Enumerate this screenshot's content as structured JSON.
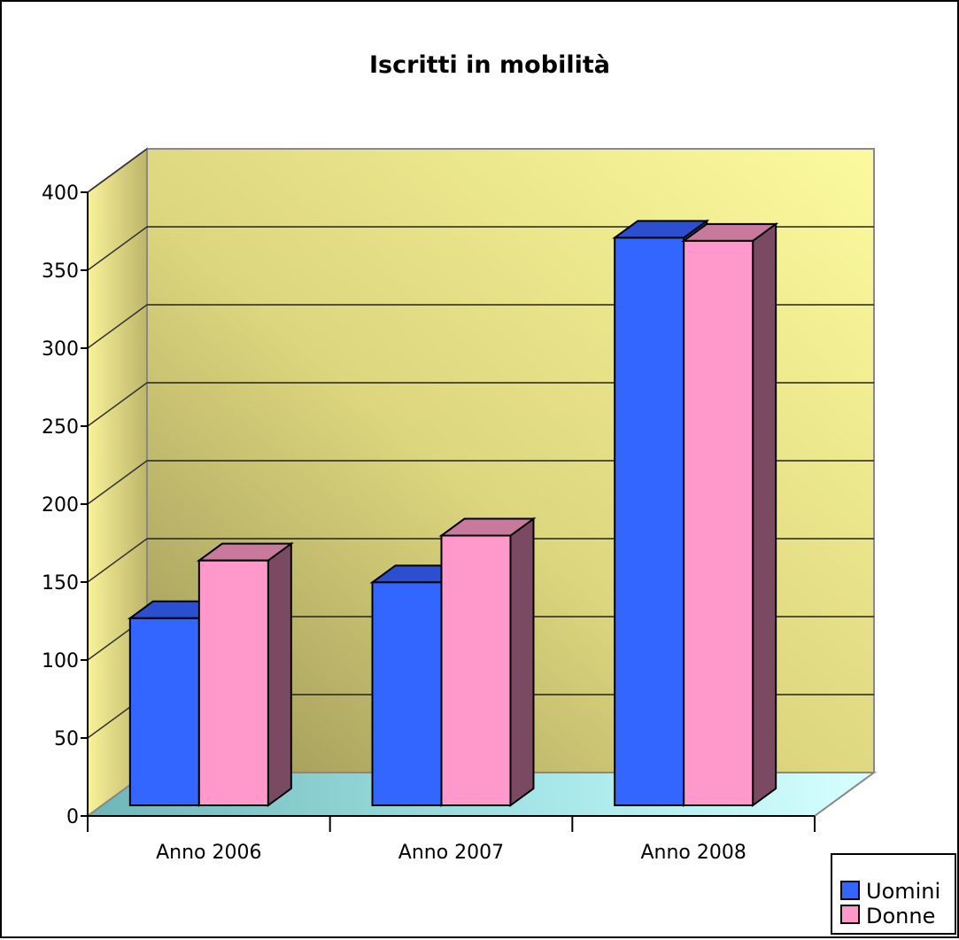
{
  "chart_data": {
    "type": "bar",
    "title": "Iscritti in mobilità",
    "xlabel": "",
    "ylabel": "",
    "categories": [
      "Anno 2006",
      "Anno 2007",
      "Anno 2008"
    ],
    "series": [
      {
        "name": "Uomini",
        "values": [
          120,
          143,
          364
        ],
        "color": "#3366ff"
      },
      {
        "name": "Donne",
        "values": [
          157,
          173,
          362
        ],
        "color": "#ff99cc"
      }
    ],
    "ylim": [
      0,
      400
    ],
    "yticks": [
      0,
      50,
      100,
      150,
      200,
      250,
      300,
      350,
      400
    ],
    "grid": true,
    "legend_position": "bottom-right",
    "colors": {
      "back_wall": "#f7f38e",
      "back_wall_dark": "#9f9858",
      "floor": "#aef0f0",
      "uomini_side": "#1a3fae",
      "donne_side": "#7a4a62"
    }
  }
}
